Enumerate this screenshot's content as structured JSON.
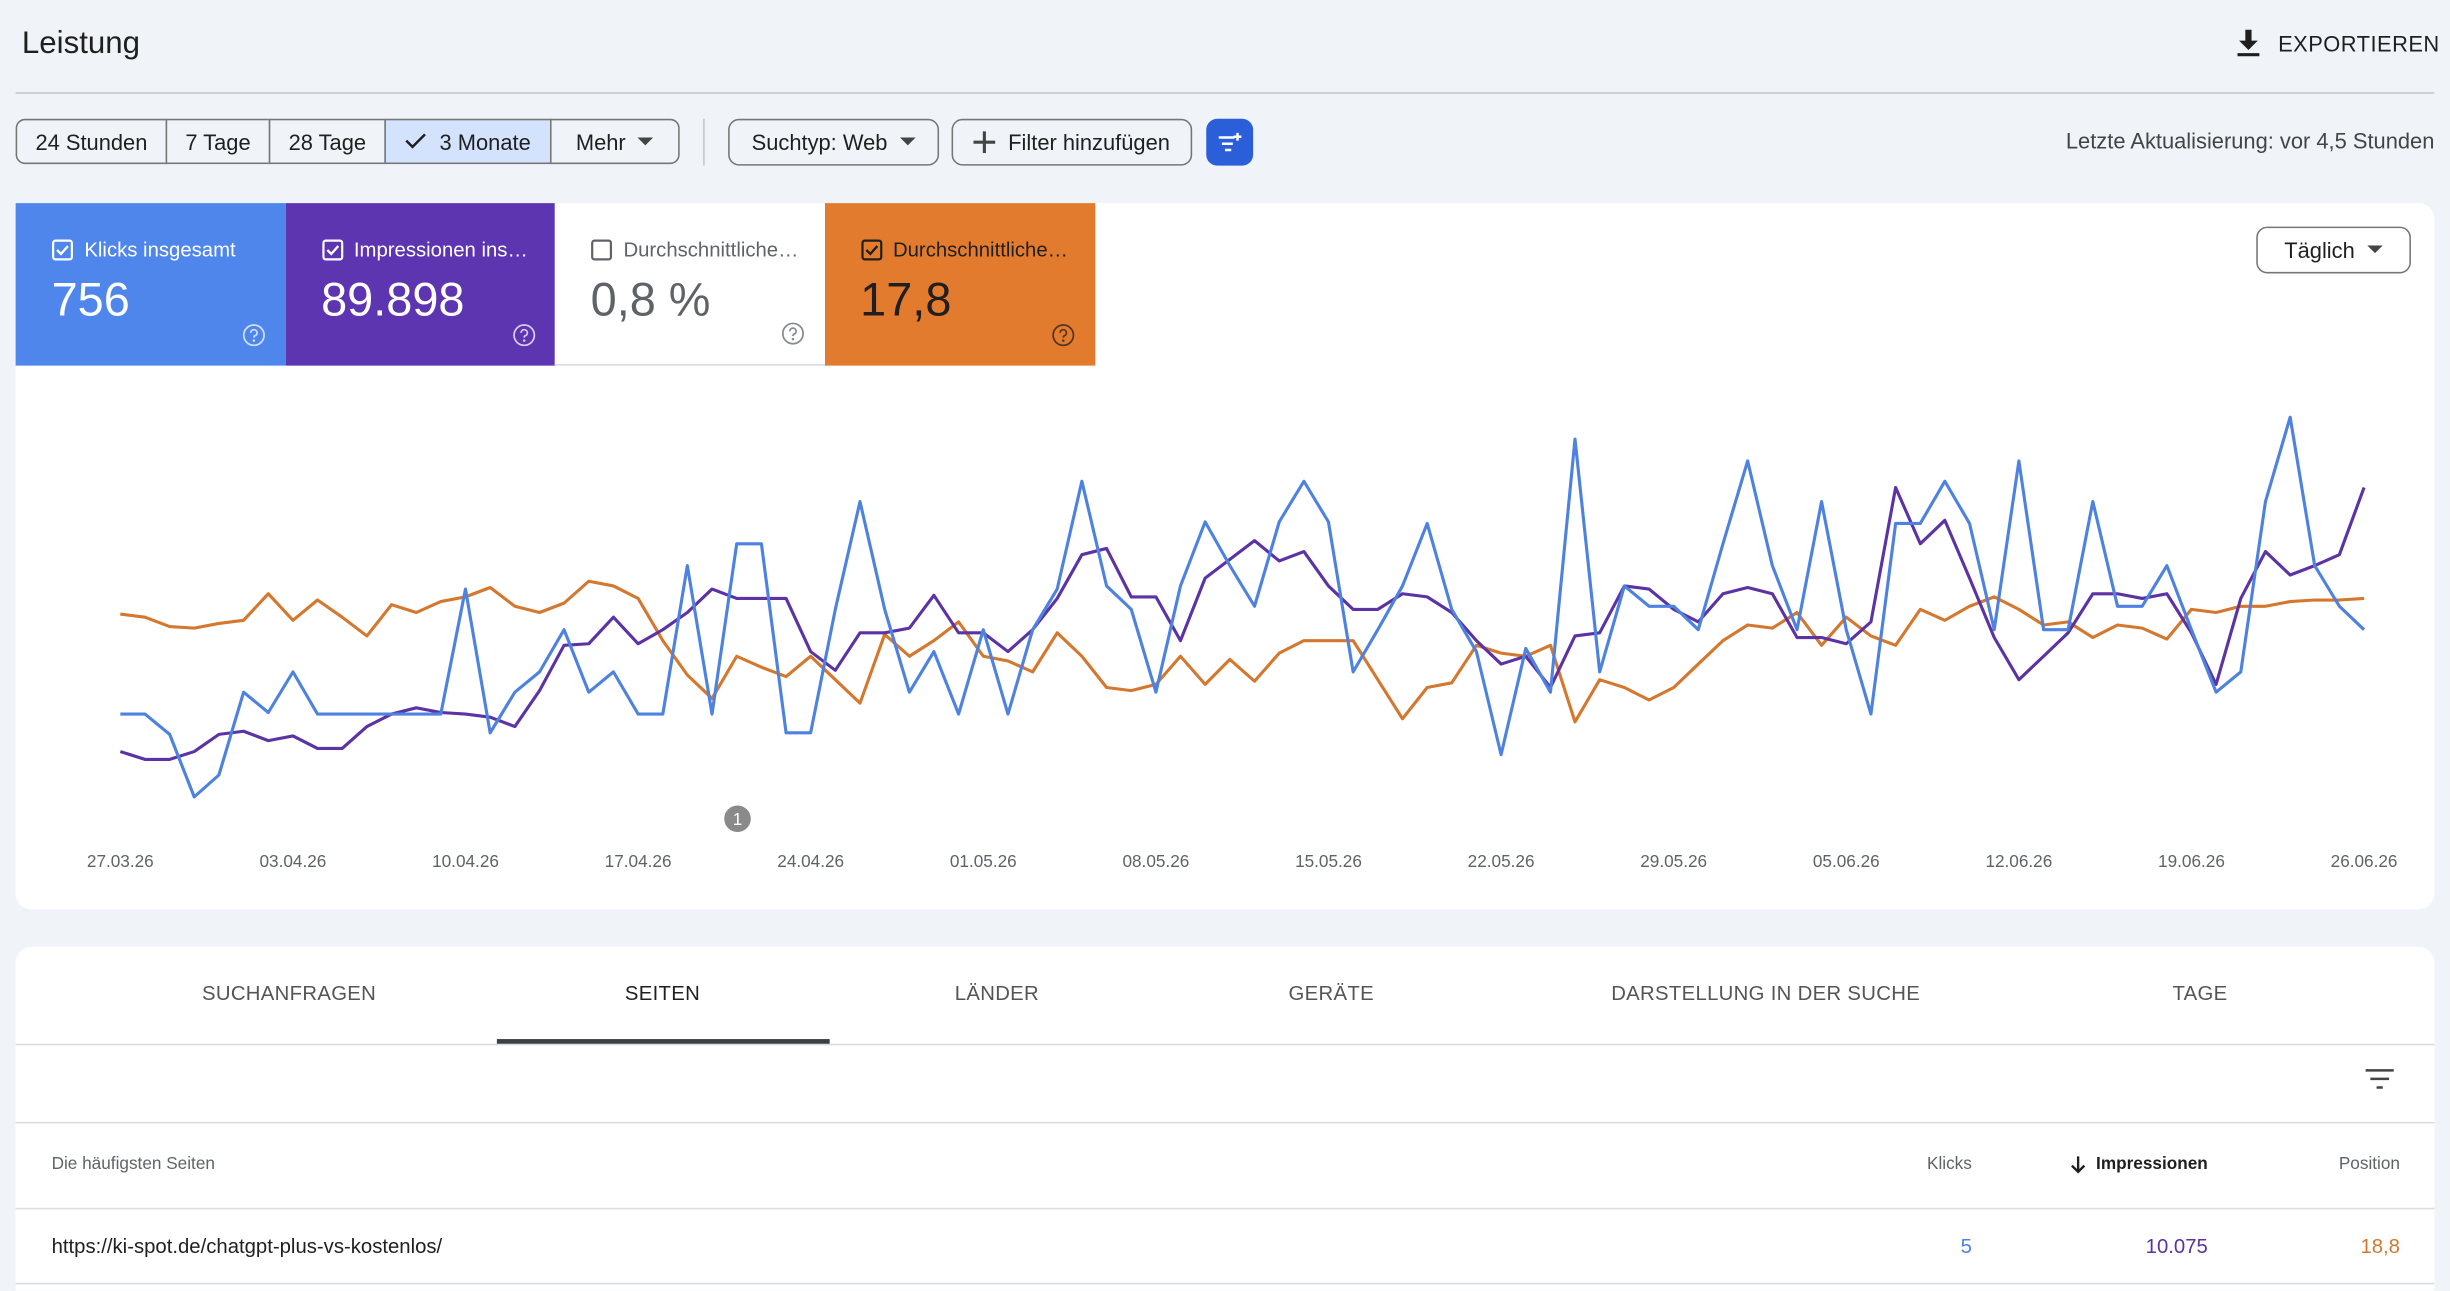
{
  "header": {
    "title": "Leistung",
    "export": "EXPORTIEREN"
  },
  "toolbar": {
    "ranges": [
      "24 Stunden",
      "7 Tage",
      "28 Tage",
      "3 Monate",
      "Mehr"
    ],
    "selected_range": 3,
    "search_type": "Suchtyp: Web",
    "add_filter": "Filter hinzufügen",
    "last_update": "Letzte Aktualisierung: vor 4,5 Stunden"
  },
  "metrics": [
    {
      "label": "Klicks insgesamt",
      "value": "756",
      "checked": true,
      "color": "#4f86ec"
    },
    {
      "label": "Impressionen ins…",
      "value": "89.898",
      "checked": true,
      "color": "#5e35b1"
    },
    {
      "label": "Durchschnittliche…",
      "value": "0,8 %",
      "checked": false,
      "color": "#ffffff"
    },
    {
      "label": "Durchschnittliche…",
      "value": "17,8",
      "checked": true,
      "color": "#e37b2e"
    }
  ],
  "granularity": "Täglich",
  "chart_data": {
    "type": "line",
    "categories": [
      "27.03.26",
      null,
      null,
      null,
      null,
      null,
      null,
      "03.04.26",
      null,
      null,
      null,
      null,
      null,
      null,
      "10.04.26",
      null,
      null,
      null,
      null,
      null,
      null,
      "17.04.26",
      null,
      null,
      null,
      null,
      null,
      null,
      "24.04.26",
      null,
      null,
      null,
      null,
      null,
      null,
      "01.05.26",
      null,
      null,
      null,
      null,
      null,
      null,
      "08.05.26",
      null,
      null,
      null,
      null,
      null,
      null,
      "15.05.26",
      null,
      null,
      null,
      null,
      null,
      null,
      "22.05.26",
      null,
      null,
      null,
      null,
      null,
      null,
      "29.05.26",
      null,
      null,
      null,
      null,
      null,
      null,
      "05.06.26",
      null,
      null,
      null,
      null,
      null,
      null,
      "12.06.26",
      null,
      null,
      null,
      null,
      null,
      null,
      "19.06.26",
      null,
      null,
      null,
      null,
      null,
      null,
      "26.06.26"
    ],
    "series": [
      {
        "color": "#4e82e0",
        "values": [
          63,
          63,
          50,
          10,
          24,
          77,
          64,
          90,
          63,
          63,
          63,
          63,
          63,
          63,
          143,
          51,
          77,
          90,
          117,
          77,
          90,
          63,
          63,
          158,
          63,
          172,
          172,
          51,
          51,
          130,
          199,
          130,
          77,
          103,
          63,
          117,
          63,
          117,
          143,
          212,
          145,
          130,
          77,
          145,
          186,
          158,
          132,
          186,
          212,
          186,
          90,
          117,
          145,
          185,
          130,
          103,
          37,
          105,
          77,
          239,
          90,
          145,
          132,
          132,
          117,
          172,
          225,
          158,
          117,
          199,
          117,
          63,
          185,
          185,
          212,
          185,
          117,
          225,
          117,
          117,
          199,
          132,
          132,
          158,
          117,
          77,
          90,
          199,
          253,
          158,
          132,
          117
        ]
      },
      {
        "color": "#5b33a4",
        "values": [
          39,
          34,
          34,
          39,
          50,
          52,
          46,
          49,
          41,
          41,
          55,
          63,
          67,
          64,
          63,
          61,
          55,
          78,
          107,
          108,
          125,
          108,
          117,
          128,
          143,
          137,
          137,
          137,
          103,
          91,
          115,
          115,
          118,
          139,
          115,
          115,
          103,
          117,
          137,
          165,
          169,
          138,
          138,
          110,
          150,
          162,
          174,
          161,
          167,
          145,
          130,
          130,
          140,
          138,
          128,
          110,
          95,
          100,
          80,
          113,
          115,
          145,
          143,
          130,
          122,
          140,
          144,
          140,
          112,
          112,
          108,
          122,
          208,
          172,
          187,
          150,
          112,
          85,
          100,
          115,
          140,
          140,
          137,
          140,
          115,
          82,
          137,
          167,
          152,
          158,
          165,
          208
        ]
      },
      {
        "color": "#d4782f",
        "values": [
          127,
          125,
          119,
          118,
          121,
          123,
          140,
          123,
          136,
          125,
          113,
          133,
          128,
          135,
          138,
          144,
          132,
          128,
          134,
          148,
          145,
          137,
          110,
          88,
          73,
          100,
          93,
          87,
          100,
          85,
          70,
          114,
          100,
          110,
          122,
          100,
          97,
          90,
          115,
          100,
          80,
          78,
          82,
          100,
          82,
          98,
          84,
          102,
          110,
          110,
          110,
          85,
          60,
          80,
          83,
          107,
          102,
          100,
          107,
          58,
          85,
          80,
          72,
          80,
          95,
          110,
          120,
          118,
          128,
          107,
          125,
          113,
          107,
          130,
          123,
          132,
          138,
          130,
          120,
          122,
          112,
          120,
          118,
          111,
          130,
          128,
          132,
          132,
          135,
          136,
          136,
          137
        ]
      }
    ],
    "ylim": [
      0,
      260
    ],
    "annotations": [
      {
        "text": "1"
      }
    ]
  },
  "tabs": [
    "SUCHANFRAGEN",
    "SEITEN",
    "LÄNDER",
    "GERÄTE",
    "DARSTELLUNG IN DER SUCHE",
    "TAGE"
  ],
  "selected_tab": 1,
  "table": {
    "columns": [
      "Die häufigsten Seiten",
      "Klicks",
      "Impressionen",
      "Position"
    ],
    "rows": [
      [
        "https://ki-spot.de/chatgpt-plus-vs-kostenlos/",
        "5",
        "10.075",
        "18,8"
      ]
    ]
  }
}
